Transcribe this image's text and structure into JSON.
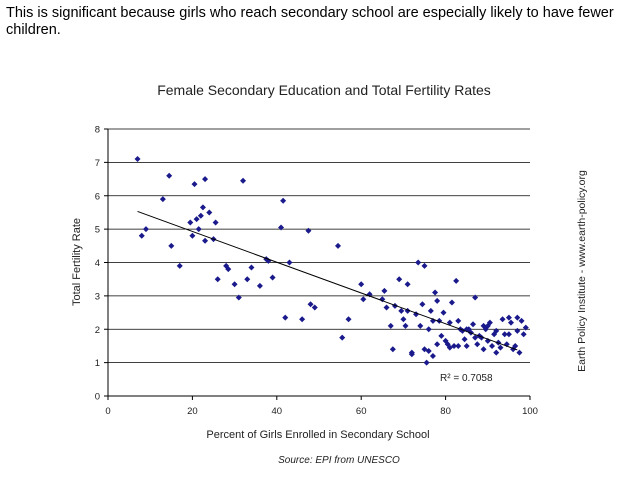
{
  "intro_text": "This is significant because girls who reach secondary school are especially likely to have fewer children.",
  "side_credit": "Earth Policy Institute - www.earth-policy.org",
  "source_note": "Source: EPI from UNESCO",
  "r_squared_label": "R² = 0.7058",
  "colors": {
    "marker": "#1a1a8c",
    "trendline": "#000000",
    "gridline": "#000000"
  },
  "chart_data": {
    "type": "scatter",
    "title": "Female Secondary Education and Total Fertility Rates",
    "xlabel": "Percent of Girls Enrolled in Secondary School",
    "ylabel": "Total Fertility Rate",
    "xlim": [
      0,
      100
    ],
    "ylim": [
      0,
      8
    ],
    "xticks": [
      0,
      20,
      40,
      60,
      80,
      100
    ],
    "yticks": [
      0,
      1,
      2,
      3,
      4,
      5,
      6,
      7,
      8
    ],
    "grid": "horizontal",
    "trendline": {
      "x": [
        7,
        97
      ],
      "y": [
        5.53,
        1.38
      ]
    },
    "points": [
      [
        7,
        7.1
      ],
      [
        8,
        4.8
      ],
      [
        9,
        5.0
      ],
      [
        13,
        5.9
      ],
      [
        14.5,
        6.6
      ],
      [
        15,
        4.5
      ],
      [
        17,
        3.9
      ],
      [
        19.5,
        5.2
      ],
      [
        20,
        4.8
      ],
      [
        20.5,
        6.35
      ],
      [
        21,
        5.3
      ],
      [
        21.5,
        5.0
      ],
      [
        22,
        5.4
      ],
      [
        22.5,
        5.65
      ],
      [
        23,
        6.5
      ],
      [
        23,
        4.65
      ],
      [
        24,
        5.5
      ],
      [
        25,
        4.7
      ],
      [
        25.5,
        5.2
      ],
      [
        26,
        3.5
      ],
      [
        28,
        3.9
      ],
      [
        28.5,
        3.8
      ],
      [
        30,
        3.35
      ],
      [
        31,
        2.95
      ],
      [
        32,
        6.45
      ],
      [
        33,
        3.5
      ],
      [
        34,
        3.85
      ],
      [
        36,
        3.3
      ],
      [
        37.5,
        4.1
      ],
      [
        38,
        4.05
      ],
      [
        39,
        3.55
      ],
      [
        41,
        5.05
      ],
      [
        41.5,
        5.85
      ],
      [
        42,
        2.35
      ],
      [
        43,
        4.0
      ],
      [
        46,
        2.3
      ],
      [
        47.5,
        4.95
      ],
      [
        48,
        2.75
      ],
      [
        49,
        2.65
      ],
      [
        54.5,
        4.5
      ],
      [
        55.5,
        1.75
      ],
      [
        57,
        2.3
      ],
      [
        60,
        3.35
      ],
      [
        60.5,
        2.9
      ],
      [
        62,
        3.05
      ],
      [
        65,
        2.9
      ],
      [
        65.5,
        3.15
      ],
      [
        66,
        2.65
      ],
      [
        67,
        2.1
      ],
      [
        67.5,
        1.4
      ],
      [
        68,
        2.7
      ],
      [
        69,
        3.5
      ],
      [
        69.5,
        2.55
      ],
      [
        70,
        2.3
      ],
      [
        70.5,
        2.1
      ],
      [
        71,
        3.35
      ],
      [
        71,
        2.55
      ],
      [
        72,
        1.3
      ],
      [
        72,
        1.25
      ],
      [
        73,
        2.45
      ],
      [
        73.5,
        4.0
      ],
      [
        74,
        2.1
      ],
      [
        74.5,
        2.75
      ],
      [
        75,
        1.4
      ],
      [
        75,
        3.9
      ],
      [
        75.5,
        1.0
      ],
      [
        76,
        2.0
      ],
      [
        76,
        1.35
      ],
      [
        76.5,
        2.55
      ],
      [
        77,
        1.2
      ],
      [
        77,
        2.25
      ],
      [
        77.5,
        3.1
      ],
      [
        78,
        2.85
      ],
      [
        78,
        1.55
      ],
      [
        78.5,
        2.25
      ],
      [
        79,
        1.8
      ],
      [
        79.5,
        2.5
      ],
      [
        80,
        1.65
      ],
      [
        80.5,
        1.55
      ],
      [
        81,
        2.2
      ],
      [
        81,
        1.45
      ],
      [
        81.5,
        2.8
      ],
      [
        82,
        1.5
      ],
      [
        82.5,
        3.45
      ],
      [
        83,
        2.25
      ],
      [
        83,
        1.5
      ],
      [
        83.5,
        2.0
      ],
      [
        84,
        1.95
      ],
      [
        84.5,
        1.7
      ],
      [
        85,
        2.0
      ],
      [
        85,
        1.5
      ],
      [
        85.5,
        2.0
      ],
      [
        86,
        1.9
      ],
      [
        86.5,
        2.15
      ],
      [
        87,
        1.75
      ],
      [
        87,
        2.95
      ],
      [
        87.5,
        1.55
      ],
      [
        88,
        1.8
      ],
      [
        88.5,
        1.75
      ],
      [
        89,
        2.1
      ],
      [
        89,
        1.4
      ],
      [
        89.5,
        2.0
      ],
      [
        90,
        2.1
      ],
      [
        90,
        1.65
      ],
      [
        90.5,
        2.2
      ],
      [
        91,
        1.5
      ],
      [
        91.5,
        1.85
      ],
      [
        92,
        1.95
      ],
      [
        92,
        1.3
      ],
      [
        92.5,
        1.6
      ],
      [
        93,
        1.45
      ],
      [
        93.5,
        2.3
      ],
      [
        94,
        1.85
      ],
      [
        94.5,
        1.55
      ],
      [
        95,
        2.35
      ],
      [
        95,
        1.85
      ],
      [
        95.5,
        2.2
      ],
      [
        96,
        1.4
      ],
      [
        96.5,
        1.5
      ],
      [
        97,
        1.95
      ],
      [
        97,
        2.35
      ],
      [
        97.5,
        1.3
      ],
      [
        98,
        2.25
      ],
      [
        98.5,
        1.85
      ],
      [
        99,
        2.05
      ]
    ]
  }
}
